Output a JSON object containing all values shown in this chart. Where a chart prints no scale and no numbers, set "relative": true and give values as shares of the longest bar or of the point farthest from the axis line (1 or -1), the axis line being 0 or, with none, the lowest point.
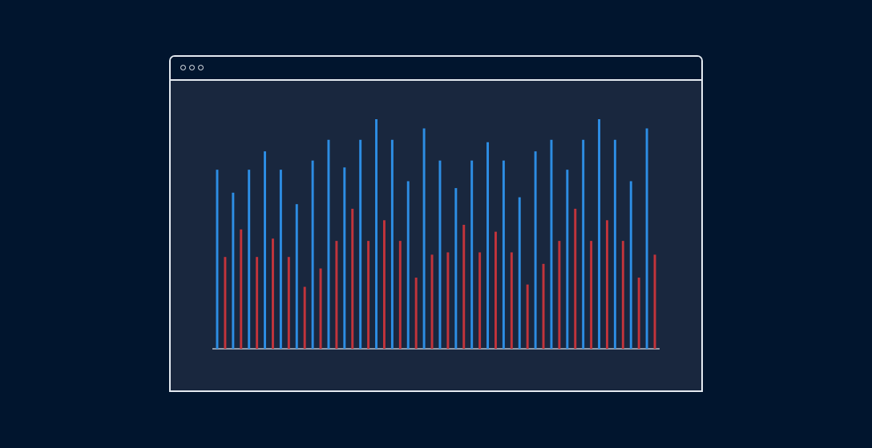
{
  "chart_data": {
    "type": "bar",
    "relative": true,
    "categories": [
      null,
      null,
      null,
      null,
      null,
      null,
      null,
      null,
      null,
      null,
      null,
      null,
      null,
      null,
      null,
      null,
      null,
      null,
      null,
      null,
      null,
      null,
      null,
      null,
      null,
      null,
      null,
      null
    ],
    "series": [
      {
        "color": "#2d8de3",
        "values": [
          0.78,
          0.68,
          0.78,
          0.86,
          0.78,
          0.63,
          0.82,
          0.91,
          0.79,
          0.91,
          1,
          0.91,
          0.73,
          0.96,
          0.82,
          0.7,
          0.82,
          0.9,
          0.82,
          0.66,
          0.86,
          0.91,
          0.78,
          0.91,
          1,
          0.91,
          0.73,
          0.96
        ]
      },
      {
        "color": "#c1343b",
        "values": [
          0.4,
          0.52,
          0.4,
          0.48,
          0.4,
          0.27,
          0.35,
          0.47,
          0.61,
          0.47,
          0.56,
          0.47,
          0.31,
          0.41,
          0.42,
          0.54,
          0.42,
          0.51,
          0.42,
          0.28,
          0.37,
          0.47,
          0.61,
          0.47,
          0.56,
          0.47,
          0.31,
          0.41
        ]
      }
    ]
  }
}
